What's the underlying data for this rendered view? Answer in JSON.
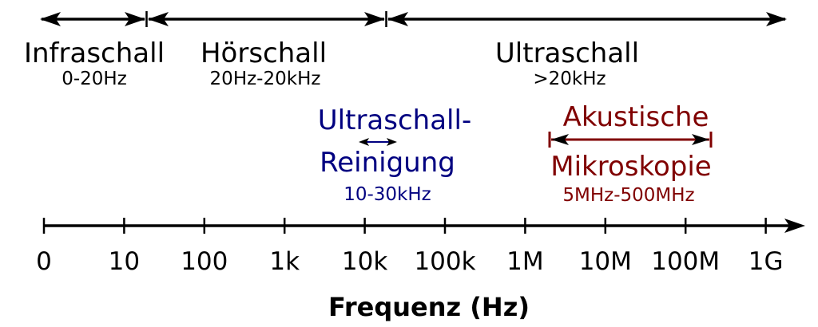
{
  "ranges": [
    {
      "name": "Infraschall",
      "range": "0-20Hz"
    },
    {
      "name": "Hörschall",
      "range": "20Hz-20kHz"
    },
    {
      "name": "Ultraschall",
      "range": ">20kHz"
    }
  ],
  "applications": {
    "cleaning": {
      "line1": "Ultraschall-",
      "line2": "Reinigung",
      "range": "10-30kHz",
      "color": "#000080"
    },
    "microscopy": {
      "line1": "Akustische",
      "line2": "Mikroskopie",
      "range": "5MHz-500MHz",
      "color": "#800000"
    }
  },
  "axis": {
    "title": "Frequenz (Hz)",
    "ticks": [
      "0",
      "10",
      "100",
      "1k",
      "10k",
      "100k",
      "1M",
      "10M",
      "100M",
      "1G"
    ]
  }
}
